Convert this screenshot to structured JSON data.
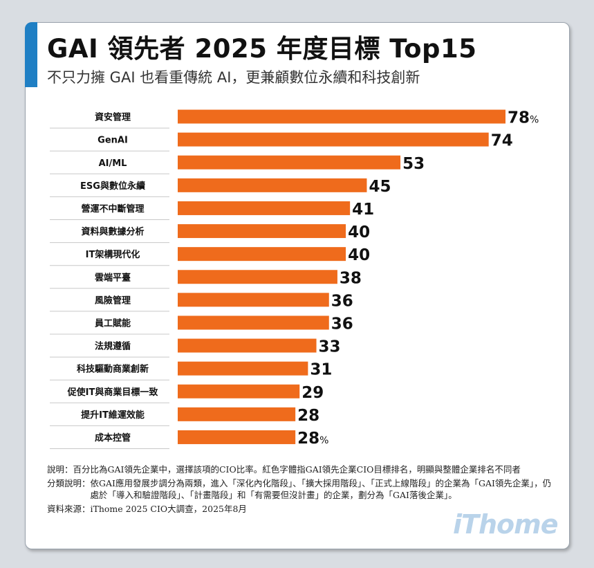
{
  "header": {
    "title": "GAI 領先者 2025 年度目標 Top15",
    "subtitle": "不只力擁 GAI 也看重傳統 AI，更兼顧數位永續和科技創新"
  },
  "chart_data": {
    "type": "bar",
    "orientation": "horizontal",
    "categories": [
      "資安管理",
      "GenAI",
      "AI/ML",
      "ESG與數位永續",
      "營運不中斷管理",
      "資料與數據分析",
      "IT架構現代化",
      "雲端平臺",
      "風險管理",
      "員工賦能",
      "法規遵循",
      "科技驅動商業創新",
      "促使IT與商業目標一致",
      "提升IT維運效能",
      "成本控管"
    ],
    "values": [
      78,
      74,
      53,
      45,
      41,
      40,
      40,
      38,
      36,
      36,
      33,
      31,
      29,
      28,
      28
    ],
    "unit": "%",
    "unit_shown_on": [
      "first",
      "last"
    ],
    "bar_color": "#ef6b1c",
    "xlim": [
      0,
      78
    ],
    "grid": false
  },
  "notes": {
    "explanation_label": "說明：",
    "explanation": "百分比為GAI領先企業中，選擇該項的CIO比率。紅色字體指GAI領先企業CIO目標排名，明顯與整體企業排名不同者",
    "classification_label": "分類說明：",
    "classification": "依GAI應用發展步調分為兩類，進入「深化內化階段」、「擴大採用階段」、「正式上線階段」的企業為「GAI領先企業」，仍處於「導入和驗證階段」、「計畫階段」和「有需要但沒計畫」的企業，劃分為「GAI落後企業」。",
    "source": "資料來源：iThome 2025 CIO大調查，2025年8月"
  },
  "logo": {
    "text": "iThome"
  },
  "colors": {
    "accent": "#1f7fc4",
    "bar": "#ef6b1c",
    "divider": "#c8c8c8"
  }
}
